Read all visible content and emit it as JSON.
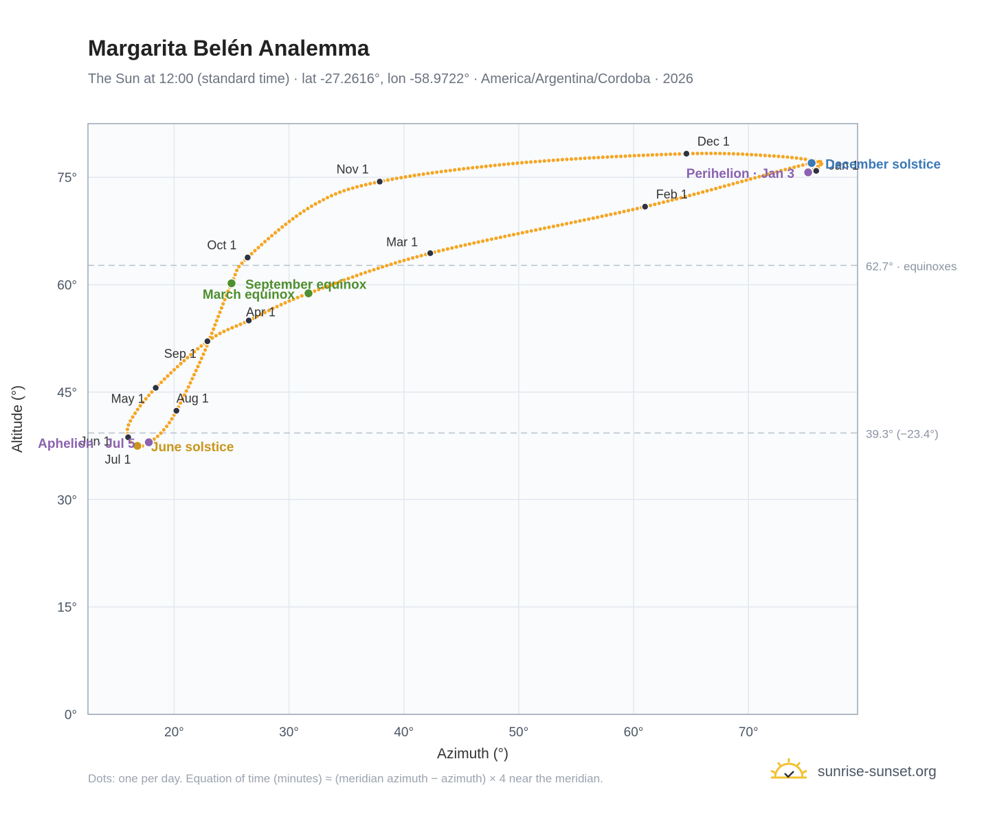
{
  "header": {
    "title": "Margarita Belén Analemma",
    "subtitle": "The Sun at 12:00 (standard time) · lat -27.2616°, lon -58.9722° · America/Argentina/Cordoba · 2026"
  },
  "footer": {
    "note": "Dots: one per day. Equation of time (minutes) ≈ (meridian azimuth − azimuth) × 4 near the meridian.",
    "brand": "sunrise-sunset.org"
  },
  "colors": {
    "curve": "#f5a623",
    "month_marker": "#2d3340",
    "equinox": "#4e8f2f",
    "june_solstice": "#c9961a",
    "december_solstice": "#3a78b8",
    "perihelion_aphelion": "#8b62b0",
    "reference_line": "#b8c2cc"
  },
  "chart_data": {
    "type": "scatter",
    "xlabel": "Azimuth (°)",
    "ylabel": "Altitude (°)",
    "xlim": [
      12.5,
      79.5
    ],
    "ylim": [
      0,
      82.5
    ],
    "x_ticks": [
      "20°",
      "30°",
      "40°",
      "50°",
      "60°",
      "70°"
    ],
    "x_tick_values": [
      20,
      30,
      40,
      50,
      60,
      70
    ],
    "y_ticks": [
      "0°",
      "15°",
      "30°",
      "45°",
      "60°",
      "75°"
    ],
    "y_tick_values": [
      0,
      15,
      30,
      45,
      60,
      75
    ],
    "grid": true,
    "reference_lines": [
      {
        "y": 62.7,
        "label": "62.7° · equinoxes"
      },
      {
        "y": 39.3,
        "label": "39.3° (−23.4°)"
      }
    ],
    "path_knots": [
      [
        75.5,
        77.0
      ],
      [
        61.0,
        70.9
      ],
      [
        42.3,
        64.4
      ],
      [
        31.7,
        58.8
      ],
      [
        26.5,
        55.0
      ],
      [
        22.9,
        52.1
      ],
      [
        18.4,
        45.6
      ],
      [
        16.2,
        41.0
      ],
      [
        16.0,
        38.7
      ],
      [
        16.6,
        37.5
      ],
      [
        17.4,
        37.6
      ],
      [
        18.8,
        39.2
      ],
      [
        20.2,
        42.4
      ],
      [
        22.6,
        50.5
      ],
      [
        25.0,
        60.2
      ],
      [
        26.4,
        63.8
      ],
      [
        32.0,
        71.0
      ],
      [
        37.9,
        74.4
      ],
      [
        50.0,
        77.0
      ],
      [
        64.6,
        78.3
      ],
      [
        72.0,
        78.0
      ],
      [
        75.8,
        77.3
      ],
      [
        76.3,
        76.8
      ],
      [
        75.9,
        76.1
      ],
      [
        75.2,
        75.7
      ],
      [
        75.5,
        77.0
      ]
    ],
    "daily_dot_count": 365,
    "month_markers": [
      {
        "label": "Jan 1",
        "x": 75.9,
        "y": 75.9
      },
      {
        "label": "Feb 1",
        "x": 61.0,
        "y": 70.9
      },
      {
        "label": "Mar 1",
        "x": 42.3,
        "y": 64.4
      },
      {
        "label": "Apr 1",
        "x": 26.5,
        "y": 55.0
      },
      {
        "label": "May 1",
        "x": 18.4,
        "y": 45.6
      },
      {
        "label": "Jun 1",
        "x": 16.0,
        "y": 38.7
      },
      {
        "label": "Jul 1",
        "x": 16.6,
        "y": 37.5
      },
      {
        "label": "Aug 1",
        "x": 20.2,
        "y": 42.4
      },
      {
        "label": "Sep 1",
        "x": 22.9,
        "y": 52.1
      },
      {
        "label": "Oct 1",
        "x": 26.4,
        "y": 63.8
      },
      {
        "label": "Nov 1",
        "x": 37.9,
        "y": 74.4
      },
      {
        "label": "Dec 1",
        "x": 64.6,
        "y": 78.3
      }
    ],
    "events": [
      {
        "label": "March equinox",
        "x": 31.7,
        "y": 58.8,
        "kind": "equinox"
      },
      {
        "label": "September equinox",
        "x": 25.0,
        "y": 60.2,
        "kind": "equinox"
      },
      {
        "label": "June solstice",
        "x": 16.8,
        "y": 37.5,
        "kind": "june_solstice"
      },
      {
        "label": "December solstice",
        "x": 75.5,
        "y": 77.0,
        "kind": "december_solstice"
      },
      {
        "label": "Perihelion · Jan 3",
        "x": 75.2,
        "y": 75.7,
        "kind": "perihelion_aphelion"
      },
      {
        "label": "Aphelion · Jul 5",
        "x": 17.8,
        "y": 38.0,
        "kind": "perihelion_aphelion"
      }
    ]
  }
}
